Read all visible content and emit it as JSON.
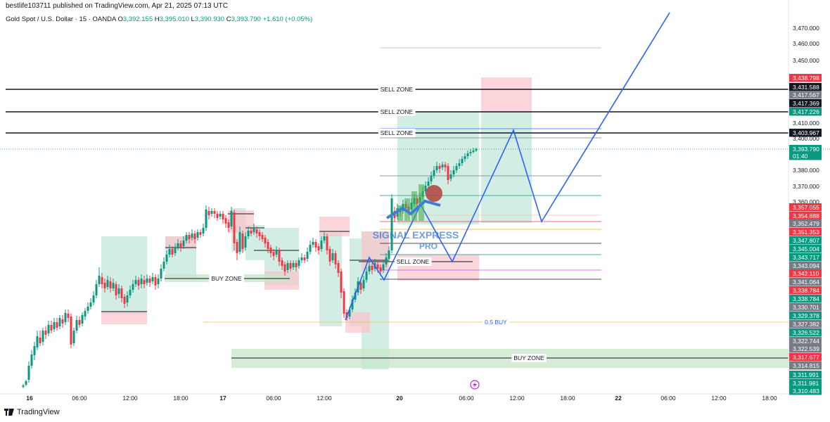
{
  "header": {
    "published": "bestlife103711 published on TradingView.com, Apr 21, 2025 07:13 UTC",
    "symbol": "Gold Spot / U.S. Dollar · 15 · OANDA",
    "ohlc": [
      {
        "k": "O",
        "v": "3,392.155"
      },
      {
        "k": "H",
        "v": "3,395.010"
      },
      {
        "k": "L",
        "v": "3,390.930"
      },
      {
        "k": "C",
        "v": "3,393.790"
      }
    ],
    "change": "+1.610 (+0.05%)"
  },
  "footer": {
    "brand": "TradingView"
  },
  "watermark": {
    "line1": "SIGNAL EXPRESS",
    "line2": "PRO"
  },
  "price_axis": {
    "ticks": [
      "3,470.000",
      "3,460.000",
      "3,450.000",
      "3,410.000",
      "3,400.000",
      "3,380.000",
      "3,370.000",
      "3,360.000"
    ],
    "tags": [
      {
        "label": "3,438.798",
        "color": "#f23645"
      },
      {
        "label": "3,431.588",
        "color": "#131722"
      },
      {
        "label": "3,417.567",
        "color": "#787b86"
      },
      {
        "label": "3,417.369",
        "color": "#131722"
      },
      {
        "label": "3,417.226",
        "color": "#089981"
      },
      {
        "label": "3,403.967",
        "color": "#131722"
      },
      {
        "label": "3,393.790",
        "color": "#089981"
      },
      {
        "label": "01:40",
        "color": "#089981"
      },
      {
        "label": "3,357.055",
        "color": "#f23645"
      },
      {
        "label": "3,354.888",
        "color": "#f23645"
      },
      {
        "label": "3,352.479",
        "color": "#787b86"
      },
      {
        "label": "3,351.353",
        "color": "#f23645"
      },
      {
        "label": "3,347.807",
        "color": "#089981"
      },
      {
        "label": "3,345.004",
        "color": "#089981"
      },
      {
        "label": "3,343.717",
        "color": "#089981"
      },
      {
        "label": "3,343.094",
        "color": "#787b86"
      },
      {
        "label": "3,342.110",
        "color": "#f23645"
      },
      {
        "label": "3,341.064",
        "color": "#787b86"
      },
      {
        "label": "3,338.784",
        "color": "#f23645"
      },
      {
        "label": "3,338.784",
        "color": "#089981"
      },
      {
        "label": "3,330.701",
        "color": "#787b86"
      },
      {
        "label": "3,329.378",
        "color": "#089981"
      },
      {
        "label": "3,327.382",
        "color": "#787b86"
      },
      {
        "label": "3,326.522",
        "color": "#089981"
      },
      {
        "label": "3,322.744",
        "color": "#787b86"
      },
      {
        "label": "3,322.539",
        "color": "#787b86"
      },
      {
        "label": "3,317.677",
        "color": "#f23645"
      },
      {
        "label": "3,314.815",
        "color": "#787b86"
      },
      {
        "label": "3,311.991",
        "color": "#089981"
      },
      {
        "label": "3,311.981",
        "color": "#089981"
      },
      {
        "label": "3,310.483",
        "color": "#089981"
      }
    ]
  },
  "time_axis": {
    "ticks": [
      {
        "label": "16",
        "bold": true
      },
      {
        "label": "06:00",
        "bold": false
      },
      {
        "label": "12:00",
        "bold": false
      },
      {
        "label": "18:00",
        "bold": false
      },
      {
        "label": "17",
        "bold": true
      },
      {
        "label": "06:00",
        "bold": false
      },
      {
        "label": "12:00",
        "bold": false
      },
      {
        "label": "20",
        "bold": true
      },
      {
        "label": "06:00",
        "bold": false
      },
      {
        "label": "12:00",
        "bold": false
      },
      {
        "label": "18:00",
        "bold": false
      },
      {
        "label": "22",
        "bold": true
      },
      {
        "label": "06:00",
        "bold": false
      },
      {
        "label": "12:00",
        "bold": false
      },
      {
        "label": "18:00",
        "bold": false
      }
    ]
  },
  "annotations": {
    "sell_zone": "SELL ZONE",
    "buy_zone": "BUY ZONE",
    "half_buy": "0.5 BUY"
  },
  "colors": {
    "up": "#089981",
    "down": "#f23645",
    "projection": "#2962ff",
    "green_zone": "#b7e4d3",
    "red_zone": "#f8c5cb"
  }
}
